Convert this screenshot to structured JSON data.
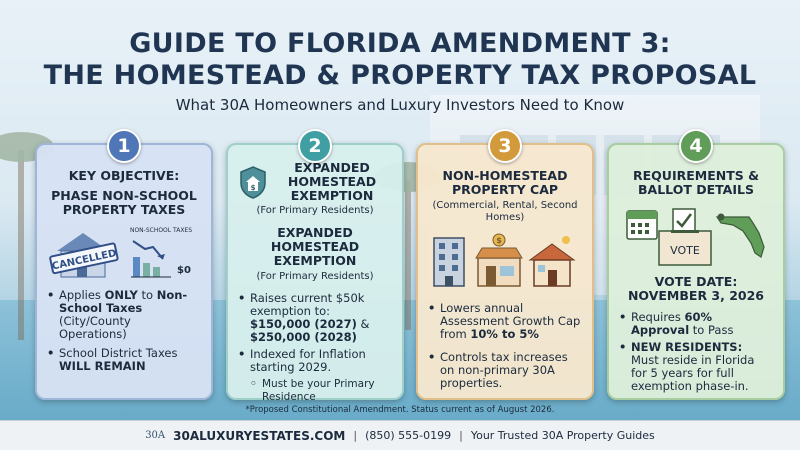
{
  "header": {
    "title_line1": "GUIDE TO FLORIDA AMENDMENT 3:",
    "title_line2": "THE HOMESTEAD & PROPERTY TAX PROPOSAL",
    "subtitle": "What 30A Homeowners and Luxury Investors Need to Know"
  },
  "cards": [
    {
      "number": "1",
      "heading": "KEY OBJECTIVE:",
      "subheading": "PHASE NON-SCHOOL PROPERTY TAXES",
      "stamp_text": "CANCELLED",
      "chart_label": "NON-SCHOOL TAXES",
      "chart_value": "$0",
      "bullets": [
        {
          "pre": "Applies ",
          "bold": "ONLY",
          "mid": " to ",
          "bold2": "Non-School Taxes",
          "post": " (City/County Operations)"
        },
        {
          "pre": "School District Taxes ",
          "bold": "WILL REMAIN"
        }
      ]
    },
    {
      "number": "2",
      "heading": "EXPANDED HOMESTEAD EXEMPTION",
      "subheading": "(For Primary Residents)",
      "heading2": "EXPANDED HOMESTEAD EXEMPTION",
      "subheading2": "(For Primary Residents)",
      "bullets": [
        {
          "pre": "Raises current $50k exemption to: ",
          "bold": "$150,000 (2027)",
          "mid": " & ",
          "bold2": "$250,000 (2028)"
        },
        {
          "pre": "Indexed for Inflation starting 2029."
        },
        {
          "pre": "Must be your Primary Residence",
          "sub": true
        }
      ]
    },
    {
      "number": "3",
      "heading": "NON-HOMESTEAD PROPERTY CAP",
      "subheading": "(Commercial, Rental, Second Homes)",
      "bullets": [
        {
          "pre": "Lowers annual Assessment Growth Cap from ",
          "bold": "10% to 5%"
        },
        {
          "pre": "Controls tax increases on non-primary 30A properties."
        }
      ]
    },
    {
      "number": "4",
      "heading": "REQUIREMENTS & BALLOT DETAILS",
      "ballot_label": "VOTE",
      "vote_date": "VOTE DATE: NOVEMBER 3, 2026",
      "bullets": [
        {
          "pre": "Requires ",
          "bold": "60% Approval",
          "post": " to Pass"
        },
        {
          "bold": "NEW RESIDENTS:",
          "post": " Must reside in Florida for 5 years for full exemption phase-in."
        }
      ]
    }
  ],
  "footnote": "*Proposed Constitutional Amendment. Status current as of August 2026.",
  "footer": {
    "logo": "30A",
    "site": "30ALUXURYESTATES.COM",
    "sep1": "|",
    "phone": "(850) 555-0199",
    "sep2": "|",
    "tagline": "Your Trusted 30A Property Guides"
  },
  "colors": {
    "card1": "#4f77b7",
    "card2": "#3f9fa3",
    "card3": "#d39a3c",
    "card4": "#5f9d58",
    "title": "#1f3552"
  }
}
